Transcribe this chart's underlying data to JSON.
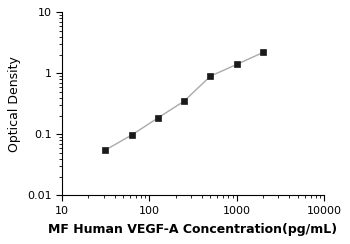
{
  "x": [
    31.25,
    62.5,
    125,
    250,
    500,
    1000,
    2000
  ],
  "y": [
    0.055,
    0.097,
    0.185,
    0.35,
    0.9,
    1.4,
    2.2
  ],
  "xlabel": "MF Human VEGF-A Concentration(pg/mL)",
  "ylabel": "Optical Density",
  "xlim": [
    10,
    10000
  ],
  "ylim": [
    0.01,
    10
  ],
  "xticks": [
    10,
    100,
    1000,
    10000
  ],
  "yticks": [
    0.01,
    0.1,
    1,
    10
  ],
  "xtick_labels": [
    "10",
    "100",
    "1000",
    "10000"
  ],
  "ytick_labels": [
    "0.01",
    "0.1",
    "1",
    "10"
  ],
  "line_color": "#aaaaaa",
  "marker_color": "#1a1a1a",
  "bg_color": "#ffffff",
  "xlabel_fontsize": 9,
  "ylabel_fontsize": 9,
  "tick_fontsize": 8
}
